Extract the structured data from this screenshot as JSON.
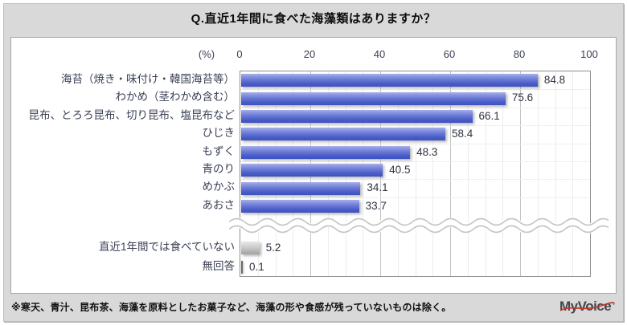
{
  "title": "Q.直近1年間に食べた海藻類はありますか？",
  "chart_data": {
    "type": "bar",
    "orientation": "horizontal",
    "title": "Q.直近1年間に食べた海藻類はありますか？",
    "unit_label": "(%)",
    "xlabel": "",
    "ylabel": "",
    "xlim": [
      0,
      100
    ],
    "axis_ticks": [
      0,
      20,
      40,
      60,
      80,
      100
    ],
    "grid": "vertical, minor every 5, major every 20",
    "legend": "none",
    "categories": [
      "海苔（焼き・味付け・韓国海苔等）",
      "わかめ（茎わかめ含む）",
      "昆布、とろろ昆布、切り昆布、塩昆布など",
      "ひじき",
      "もずく",
      "青のり",
      "めかぶ",
      "あおさ",
      "直近1年間では食べていない",
      "無回答"
    ],
    "values": [
      84.8,
      75.6,
      66.1,
      58.4,
      48.3,
      40.5,
      34.1,
      33.7,
      5.2,
      0.1
    ],
    "series_colors": {
      "eaten_items": "#4a5dc7",
      "not_eaten": "#bdbdbd",
      "no_answer": "#6a6a6a"
    },
    "axis_break": "wavy separator between あおさ and 直近1年間では食べていない"
  },
  "footer": {
    "note": "※寒天、青汁、昆布茶、海藻を原料としたお菓子など、海藻の形や食感が残っていないものは除く。",
    "brand": "MyVoice",
    "brand_accent_color": "#c0392b"
  }
}
